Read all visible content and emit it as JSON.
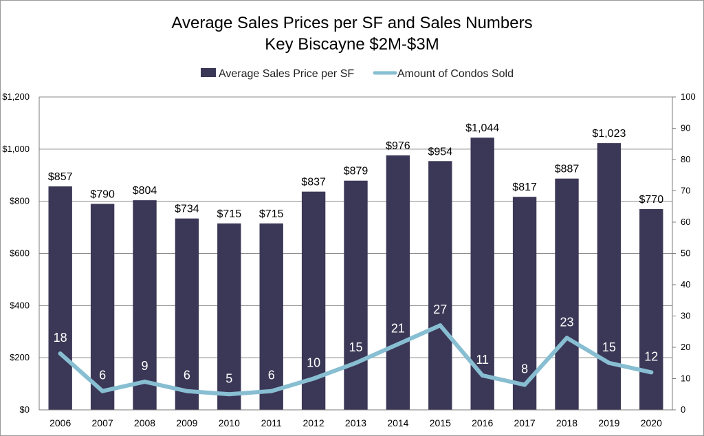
{
  "chart_data": {
    "type": "bar",
    "title": "Average Sales Prices per SF and Sales Numbers",
    "subtitle": "Key Biscayne $2M-$3M",
    "categories": [
      "2006",
      "2007",
      "2008",
      "2009",
      "2010",
      "2011",
      "2012",
      "2013",
      "2014",
      "2015",
      "2016",
      "2017",
      "2018",
      "2019",
      "2020"
    ],
    "series": [
      {
        "name": "Average Sales Price per SF",
        "type": "bar",
        "axis": "left",
        "color": "#3b3756",
        "values": [
          857,
          790,
          804,
          734,
          715,
          715,
          837,
          879,
          976,
          954,
          1044,
          817,
          887,
          1023,
          770
        ],
        "labels": [
          "$857",
          "$790",
          "$804",
          "$734",
          "$715",
          "$715",
          "$837",
          "$879",
          "$976",
          "$954",
          "$1,044",
          "$817",
          "$887",
          "$1,023",
          "$770"
        ]
      },
      {
        "name": "Amount of Condos Sold",
        "type": "line",
        "axis": "right",
        "color": "#88bed2",
        "values": [
          18,
          6,
          9,
          6,
          5,
          6,
          10,
          15,
          21,
          27,
          11,
          8,
          23,
          15,
          12
        ],
        "labels": [
          "18",
          "6",
          "9",
          "6",
          "5",
          "6",
          "10",
          "15",
          "21",
          "27",
          "11",
          "8",
          "23",
          "15",
          "12"
        ]
      }
    ],
    "y_left": {
      "lim": [
        0,
        1200
      ],
      "ticks": [
        "$0",
        "$200",
        "$400",
        "$600",
        "$800",
        "$1,000",
        "$1,200"
      ]
    },
    "y_right": {
      "lim": [
        0,
        100
      ],
      "ticks": [
        "0",
        "10",
        "20",
        "30",
        "40",
        "50",
        "60",
        "70",
        "80",
        "90",
        "100"
      ]
    },
    "grid": true,
    "legend": "top-center"
  }
}
